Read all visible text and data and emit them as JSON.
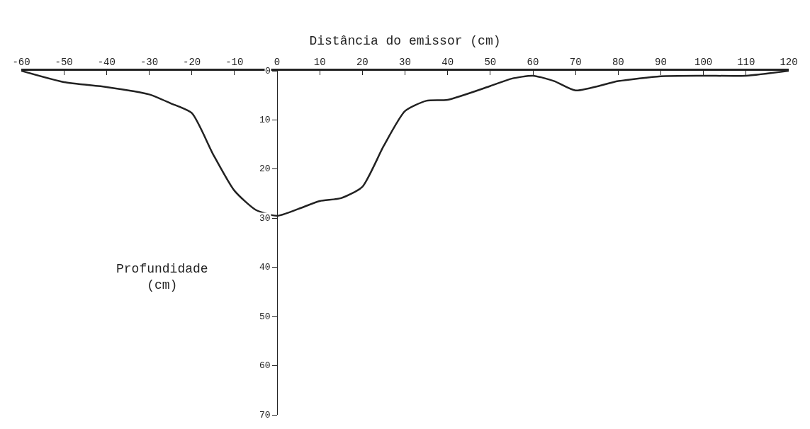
{
  "chart_data": {
    "type": "line",
    "xlabel": "Distância do emissor (cm)",
    "ylabel": "Profundidade (cm)",
    "x": [
      -60,
      -50,
      -40,
      -30,
      -25,
      -20,
      -15,
      -10,
      -5,
      0,
      5,
      10,
      15,
      20,
      25,
      30,
      35,
      40,
      50,
      55,
      60,
      65,
      70,
      80,
      90,
      100,
      110,
      120
    ],
    "series": [
      {
        "color": "#222222",
        "values": [
          0,
          2.3,
          3.3,
          4.8,
          6.6,
          8.6,
          17,
          24.4,
          28.3,
          29.5,
          28.1,
          26.5,
          25.9,
          23.6,
          15.3,
          8.2,
          6.1,
          5.9,
          3.1,
          1.6,
          1.0,
          2.1,
          4.0,
          2.1,
          1.1,
          1.0,
          1.0,
          0
        ]
      }
    ],
    "xlim": [
      -60,
      120
    ],
    "xticks": [
      -60,
      -50,
      -40,
      -30,
      -20,
      -10,
      0,
      10,
      20,
      30,
      40,
      50,
      60,
      70,
      80,
      90,
      100,
      110,
      120
    ],
    "ylim": [
      70,
      0
    ],
    "yticks": [
      0,
      10,
      20,
      30,
      40,
      50,
      60,
      70
    ],
    "grid": false,
    "marker": "none",
    "line_style": "solid"
  }
}
